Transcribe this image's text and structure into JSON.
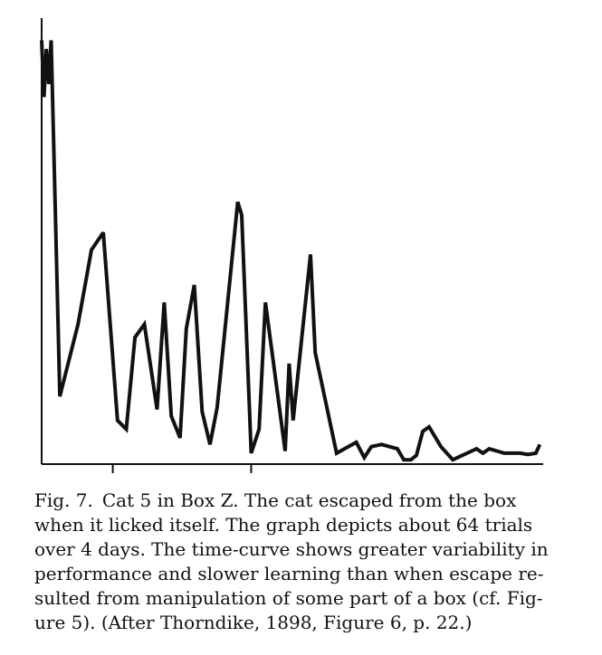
{
  "figure": {
    "label": "Fig. 7.",
    "caption_lines": [
      "Cat 5 in Box Z. The cat escaped from the box",
      "when it licked itself. The graph depicts about 64 trials",
      "over 4 days. The time-curve shows greater variability in",
      "performance and slower learning than when escape re-",
      "sulted from manipulation of some part of a box (cf. Fig-",
      "ure 5). (After Thorndike, 1898, Figure 6, p. 22.)"
    ]
  },
  "chart_data": {
    "type": "line",
    "title": "",
    "xlabel": "",
    "ylabel": "",
    "xlim": [
      0,
      64
    ],
    "ylim": [
      0,
      100
    ],
    "x_ticks": [
      9,
      26.5
    ],
    "grid": false,
    "color": "#111111",
    "series": [
      {
        "x": [
          0,
          0.3,
          0.6,
          0.9,
          1.2,
          2.3,
          4.6,
          6.3,
          7.8,
          9.6,
          10.7,
          11.8,
          13.0,
          14.6,
          15.5,
          16.4,
          17.5,
          18.3,
          19.3,
          20.3,
          21.3,
          22.2,
          24.8,
          25.3,
          26.5,
          27.5,
          28.3,
          30.8,
          31.3,
          31.8,
          34.0,
          34.6,
          37.3,
          39.8,
          40.8,
          41.7,
          43.0,
          45.0,
          45.8,
          46.7,
          47.4,
          48.2,
          49.0,
          50.5,
          52.0,
          55.0,
          55.8,
          56.6,
          58.5,
          60.5,
          61.5,
          62.5,
          63.0
        ],
        "y": [
          97,
          84,
          95,
          87,
          97,
          15.5,
          32,
          49,
          53,
          10,
          8,
          29,
          32,
          12.5,
          37,
          11,
          6,
          31,
          41,
          12,
          4.5,
          13,
          60,
          57,
          2.5,
          8,
          37,
          3,
          23,
          10,
          48,
          25.5,
          2.5,
          5,
          1.5,
          4,
          4.5,
          3.5,
          1,
          1,
          2,
          7.5,
          8.5,
          4,
          1,
          3.5,
          2.5,
          3.5,
          2.5,
          2.5,
          2.2,
          2.5,
          4.5
        ]
      }
    ]
  }
}
